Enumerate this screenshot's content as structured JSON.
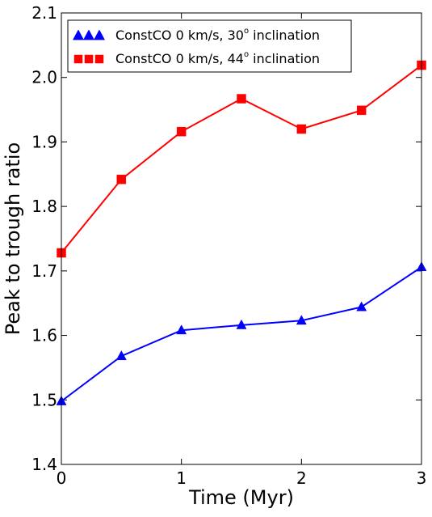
{
  "chart_data": {
    "type": "line",
    "title": "",
    "xlabel": "Time (Myr)",
    "ylabel": "Peak to trough ratio",
    "x": [
      0,
      0.5,
      1,
      1.5,
      2,
      2.5,
      3
    ],
    "xlim": [
      0,
      3
    ],
    "ylim": [
      1.4,
      2.1
    ],
    "xticks": [
      0,
      1,
      2,
      3
    ],
    "yticks": [
      1.4,
      1.5,
      1.6,
      1.7,
      1.8,
      1.9,
      2.0,
      2.1
    ],
    "xtick_labels": [
      "0",
      "1",
      "2",
      "3"
    ],
    "ytick_labels": [
      "1.4",
      "1.5",
      "1.6",
      "1.7",
      "1.8",
      "1.9",
      "2.0",
      "2.1"
    ],
    "grid": false,
    "legend_position": "top-left",
    "series": [
      {
        "name_prefix": "ConstCO 0 km/s, 30",
        "name_degree": "o",
        "name_suffix": " inclination",
        "marker": "triangle",
        "color": "#0000ff",
        "values": [
          1.498,
          1.568,
          1.608,
          1.616,
          1.623,
          1.644,
          1.706
        ]
      },
      {
        "name_prefix": "ConstCO 0 km/s, 44",
        "name_degree": "o",
        "name_suffix": " inclination",
        "marker": "square",
        "color": "#ff0000",
        "values": [
          1.728,
          1.842,
          1.916,
          1.967,
          1.92,
          1.949,
          2.019
        ]
      }
    ]
  }
}
